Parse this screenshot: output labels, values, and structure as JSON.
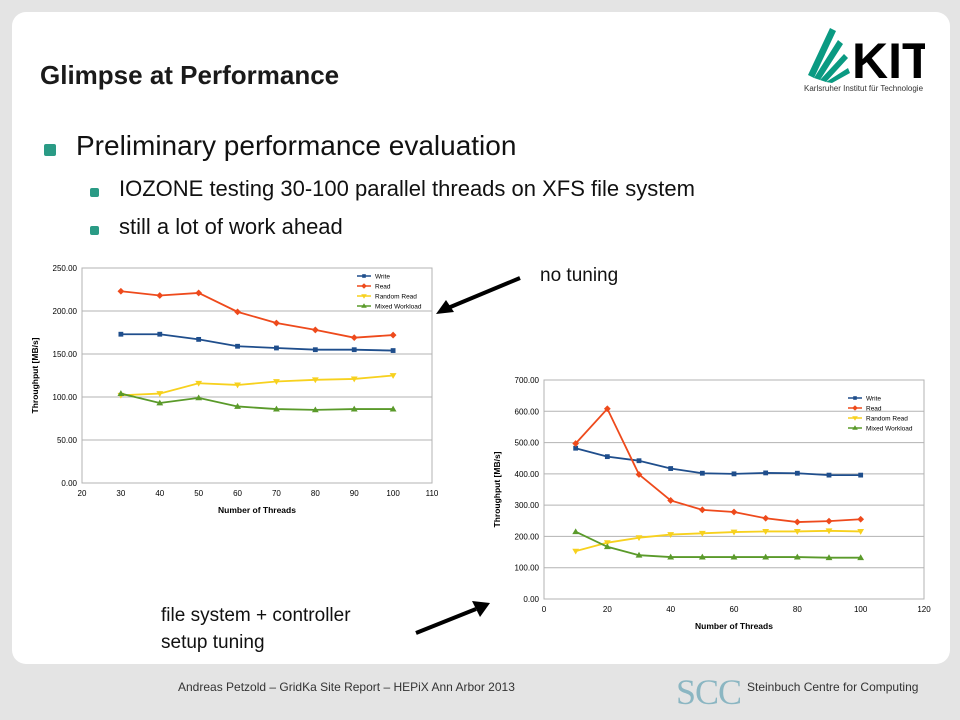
{
  "slide": {
    "title": "Glimpse at Performance",
    "logo_text": "KIT",
    "logo_caption": "Karlsruher Institut für Technologie",
    "bullets": [
      "Preliminary performance evaluation",
      "IOZONE testing 30-100 parallel threads on XFS file system",
      "still a lot of work ahead"
    ],
    "annotations": [
      "no tuning",
      "file system + controller",
      "setup tuning"
    ],
    "footer_left": "Andreas Petzold – GridKa Site Report – HEPiX Ann Arbor 2013",
    "footer_right": "Steinbuch Centre for Computing",
    "footer_logo": "SCC",
    "colors": {
      "accent": "#2a9b85",
      "write": "#1f4e8c",
      "read": "#ee4a1c",
      "random_read": "#f7d11e",
      "mixed": "#5a9a2a"
    }
  },
  "chart_data": [
    {
      "type": "line",
      "title": "",
      "xlabel": "Number of Threads",
      "ylabel": "Throughput [MB/s]",
      "xlim": [
        20,
        110
      ],
      "ylim": [
        0,
        250
      ],
      "xticks": [
        "20",
        "30",
        "40",
        "50",
        "60",
        "70",
        "80",
        "90",
        "100",
        "110"
      ],
      "yticks": [
        "0.00",
        "50.00",
        "100.00",
        "150.00",
        "200.00",
        "250.00"
      ],
      "grid": true,
      "legend": "top-right",
      "x": [
        30,
        40,
        50,
        60,
        70,
        80,
        90,
        100
      ],
      "series": [
        {
          "name": "Write",
          "marker": "square",
          "values": [
            173,
            173,
            167,
            159,
            157,
            155,
            155,
            154
          ]
        },
        {
          "name": "Read",
          "marker": "diamond",
          "values": [
            223,
            218,
            221,
            199,
            186,
            178,
            169,
            172
          ]
        },
        {
          "name": "Random Read",
          "marker": "triangle-down",
          "values": [
            102,
            104,
            116,
            114,
            118,
            120,
            121,
            125
          ]
        },
        {
          "name": "Mixed Workload",
          "marker": "triangle-up",
          "values": [
            104,
            93,
            99,
            89,
            86,
            85,
            86,
            86
          ]
        }
      ]
    },
    {
      "type": "line",
      "title": "",
      "xlabel": "Number of Threads",
      "ylabel": "Throughput [MB/s]",
      "xlim": [
        0,
        120
      ],
      "ylim": [
        0,
        700
      ],
      "xticks": [
        "0",
        "20",
        "40",
        "60",
        "80",
        "100",
        "120"
      ],
      "yticks": [
        "0.00",
        "100.00",
        "200.00",
        "300.00",
        "400.00",
        "500.00",
        "600.00",
        "700.00"
      ],
      "grid": true,
      "legend": "top-right",
      "x": [
        10,
        20,
        30,
        40,
        50,
        60,
        70,
        80,
        90,
        100
      ],
      "series": [
        {
          "name": "Write",
          "marker": "square",
          "values": [
            482,
            455,
            442,
            417,
            402,
            400,
            403,
            402,
            396,
            396
          ]
        },
        {
          "name": "Read",
          "marker": "diamond",
          "values": [
            497,
            608,
            398,
            315,
            285,
            278,
            258,
            246,
            249,
            255
          ]
        },
        {
          "name": "Random Read",
          "marker": "triangle-down",
          "values": [
            153,
            180,
            196,
            206,
            210,
            214,
            216,
            216,
            218,
            216
          ]
        },
        {
          "name": "Mixed Workload",
          "marker": "triangle-up",
          "values": [
            215,
            167,
            140,
            134,
            134,
            134,
            134,
            134,
            132,
            132
          ]
        }
      ]
    }
  ]
}
